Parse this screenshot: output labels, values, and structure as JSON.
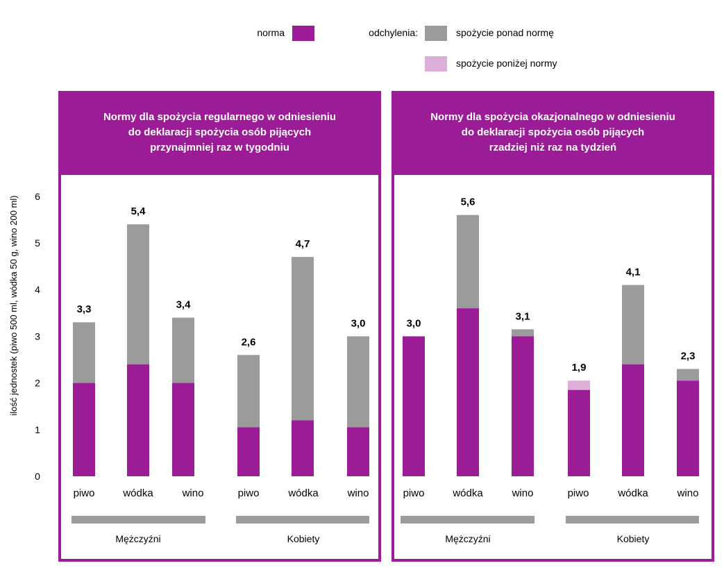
{
  "legend": {
    "norma_label": "norma",
    "deviations_label": "odchylenia:",
    "above_label": "spożycie ponad normę",
    "below_label": "spożycie poniżej normy"
  },
  "colors": {
    "norma": "#9c1c98",
    "above": "#9b9b9b",
    "below": "#ddaed8",
    "frame": "#9c1c98",
    "group_bar": "#9b9b9b"
  },
  "y_axis": {
    "label": "ilość jednostek (piwo 500 ml, wódka 50 g, wino 200 ml)",
    "ticks": [
      "0",
      "1",
      "2",
      "3",
      "4",
      "5",
      "6"
    ]
  },
  "chart_data": [
    {
      "type": "bar",
      "stacked": true,
      "title": "Normy dla spożycia regularnego w odniesieniu do deklaracji spożycia osób pijących przynajmniej raz w tygodniu",
      "title_lines": [
        "Normy dla spożycia regularnego w odniesieniu",
        "do deklaracji spożycia osób pijących",
        "przynajmniej raz w tygodniu"
      ],
      "ylim": [
        0,
        6
      ],
      "groups": [
        "Mężczyźni",
        "Kobiety"
      ],
      "categories": [
        "piwo",
        "wódka",
        "wino",
        "piwo",
        "wódka",
        "wino"
      ],
      "bars": [
        {
          "category": "piwo",
          "group": "Mężczyźni",
          "norma": 2.0,
          "value": 3.3,
          "label": "3,3"
        },
        {
          "category": "wódka",
          "group": "Mężczyźni",
          "norma": 2.4,
          "value": 5.4,
          "label": "5,4"
        },
        {
          "category": "wino",
          "group": "Mężczyźni",
          "norma": 2.0,
          "value": 3.4,
          "label": "3,4"
        },
        {
          "category": "piwo",
          "group": "Kobiety",
          "norma": 1.05,
          "value": 2.6,
          "label": "2,6"
        },
        {
          "category": "wódka",
          "group": "Kobiety",
          "norma": 1.2,
          "value": 4.7,
          "label": "4,7"
        },
        {
          "category": "wino",
          "group": "Kobiety",
          "norma": 1.05,
          "value": 3.0,
          "label": "3,0"
        }
      ]
    },
    {
      "type": "bar",
      "stacked": true,
      "title": "Normy dla spożycia okazjonalnego w odniesieniu do deklaracji spożycia osób pijących rzadziej niż raz na tydzień",
      "title_lines": [
        "Normy dla spożycia okazjonalnego w odniesieniu",
        "do deklaracji spożycia osób pijących",
        "rzadziej niż raz na tydzień"
      ],
      "ylim": [
        0,
        6
      ],
      "groups": [
        "Mężczyźni",
        "Kobiety"
      ],
      "categories": [
        "piwo",
        "wódka",
        "wino",
        "piwo",
        "wódka",
        "wino"
      ],
      "bars": [
        {
          "category": "piwo",
          "group": "Mężczyźni",
          "norma": 3.0,
          "value": 3.0,
          "label": "3,0"
        },
        {
          "category": "wódka",
          "group": "Mężczyźni",
          "norma": 3.6,
          "value": 5.6,
          "label": "5,6"
        },
        {
          "category": "wino",
          "group": "Mężczyźni",
          "norma": 3.0,
          "value": 3.15,
          "label": "3,1"
        },
        {
          "category": "piwo",
          "group": "Kobiety",
          "norma": 2.05,
          "value": 1.85,
          "label": "1,9"
        },
        {
          "category": "wódka",
          "group": "Kobiety",
          "norma": 2.4,
          "value": 4.1,
          "label": "4,1"
        },
        {
          "category": "wino",
          "group": "Kobiety",
          "norma": 2.05,
          "value": 2.3,
          "label": "2,3"
        }
      ]
    }
  ]
}
